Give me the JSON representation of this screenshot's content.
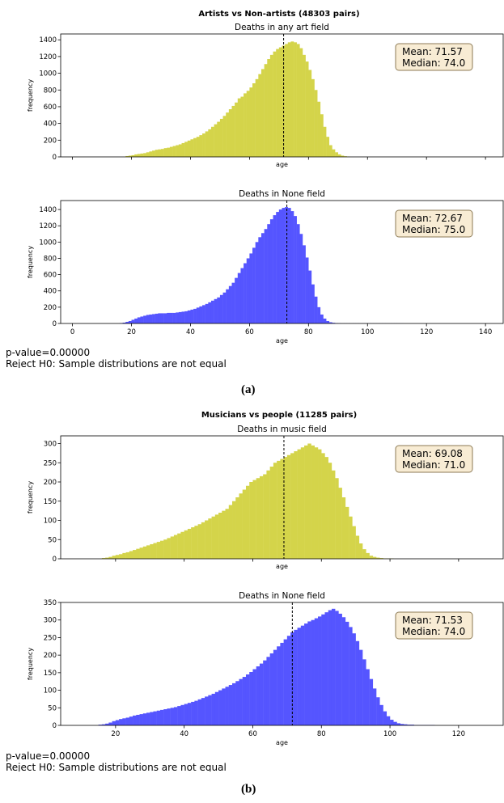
{
  "figures": [
    {
      "label": "(a)",
      "suptitle": "Artists vs Non-artists (48303 pairs)",
      "pvalue_text": "p-value=0.00000",
      "reject_text": "Reject H0: Sample distributions are not equal"
    },
    {
      "label": "(b)",
      "suptitle": "Musicians vs people (11285 pairs)",
      "pvalue_text": "p-value=0.00000",
      "reject_text": "Reject H0: Sample distributions are not equal"
    }
  ],
  "colors": {
    "yellow_bars": "#d4d44a",
    "blue_bars": "#5555ff",
    "stats_box_fill": "#f8ecd4",
    "stats_box_edge": "#8c7a55"
  },
  "chart_data": [
    {
      "type": "bar",
      "subplot_title": "Deaths in any art field",
      "xlabel": "age",
      "ylabel": "frequency",
      "color": "#d4d44a",
      "xlim": [
        -4,
        146
      ],
      "ylim": [
        0,
        1470
      ],
      "x_ticks": [
        0,
        20,
        40,
        60,
        80,
        100,
        120,
        140
      ],
      "x_ticklabels": [],
      "y_ticks": [
        0,
        200,
        400,
        600,
        800,
        1000,
        1200,
        1400
      ],
      "bin_start": 18,
      "bin_width": 1,
      "grid": false,
      "values": [
        10,
        15,
        20,
        30,
        35,
        40,
        45,
        55,
        65,
        75,
        85,
        90,
        95,
        105,
        110,
        120,
        130,
        140,
        150,
        165,
        180,
        195,
        210,
        225,
        240,
        260,
        280,
        305,
        330,
        360,
        390,
        420,
        455,
        490,
        530,
        570,
        610,
        650,
        700,
        720,
        760,
        790,
        830,
        880,
        930,
        990,
        1050,
        1110,
        1170,
        1220,
        1260,
        1290,
        1310,
        1330,
        1350,
        1370,
        1380,
        1370,
        1350,
        1300,
        1220,
        1140,
        1040,
        930,
        800,
        660,
        510,
        360,
        240,
        140,
        90,
        55,
        30,
        15,
        8,
        4
      ],
      "mean_line": 71.57,
      "stats_box": {
        "mean": "Mean: 71.57",
        "median": "Median: 74.0",
        "position": "top-right"
      }
    },
    {
      "type": "bar",
      "subplot_title": "Deaths in None field",
      "xlabel": "age",
      "ylabel": "frequency",
      "color": "#5555ff",
      "xlim": [
        -4,
        146
      ],
      "ylim": [
        0,
        1510
      ],
      "x_ticks": [
        0,
        20,
        40,
        60,
        80,
        100,
        120,
        140
      ],
      "x_ticklabels": [
        "0",
        "20",
        "40",
        "60",
        "80",
        "100",
        "120",
        "140"
      ],
      "y_ticks": [
        0,
        200,
        400,
        600,
        800,
        1000,
        1200,
        1400
      ],
      "bin_start": 16,
      "bin_width": 1,
      "grid": false,
      "values": [
        5,
        10,
        20,
        30,
        45,
        60,
        75,
        85,
        95,
        105,
        110,
        115,
        120,
        125,
        125,
        125,
        130,
        130,
        130,
        135,
        140,
        145,
        150,
        160,
        170,
        180,
        195,
        210,
        225,
        240,
        260,
        280,
        300,
        320,
        350,
        380,
        420,
        460,
        500,
        560,
        620,
        680,
        740,
        800,
        860,
        930,
        1000,
        1060,
        1110,
        1160,
        1220,
        1280,
        1330,
        1370,
        1400,
        1420,
        1430,
        1420,
        1380,
        1320,
        1220,
        1100,
        960,
        810,
        650,
        480,
        330,
        200,
        110,
        60,
        30,
        15,
        8,
        4,
        2,
        1,
        1,
        1,
        1,
        1,
        1,
        1,
        1,
        1,
        1,
        1,
        1,
        1,
        1,
        1,
        1,
        1,
        1,
        1,
        1,
        1
      ],
      "mean_line": 72.67,
      "stats_box": {
        "mean": "Mean: 72.67",
        "median": "Median: 75.0",
        "position": "top-right"
      }
    },
    {
      "type": "bar",
      "subplot_title": "Deaths in music field",
      "xlabel": "age",
      "ylabel": "frequency",
      "color": "#d4d44a",
      "xlim": [
        4,
        133
      ],
      "ylim": [
        0,
        320
      ],
      "x_ticks": [
        20,
        40,
        60,
        80,
        100,
        120
      ],
      "x_ticklabels": [],
      "y_ticks": [
        0,
        50,
        100,
        150,
        200,
        250,
        300
      ],
      "bin_start": 16,
      "bin_width": 1,
      "grid": false,
      "values": [
        2,
        3,
        5,
        8,
        10,
        12,
        15,
        17,
        20,
        23,
        26,
        29,
        32,
        35,
        38,
        41,
        44,
        47,
        50,
        54,
        58,
        62,
        66,
        70,
        74,
        78,
        82,
        86,
        90,
        95,
        100,
        105,
        110,
        115,
        120,
        125,
        130,
        140,
        150,
        160,
        170,
        180,
        190,
        200,
        205,
        210,
        215,
        220,
        230,
        240,
        250,
        255,
        260,
        265,
        270,
        275,
        280,
        285,
        290,
        295,
        300,
        295,
        290,
        285,
        275,
        265,
        250,
        230,
        210,
        185,
        160,
        135,
        110,
        85,
        60,
        40,
        25,
        15,
        8,
        5,
        3,
        2,
        1,
        1,
        1
      ],
      "mean_line": 69.08,
      "stats_box": {
        "mean": "Mean: 69.08",
        "median": "Median: 71.0",
        "position": "top-right"
      }
    },
    {
      "type": "bar",
      "subplot_title": "Deaths in None field",
      "xlabel": "age",
      "ylabel": "frequency",
      "color": "#5555ff",
      "xlim": [
        4,
        133
      ],
      "ylim": [
        0,
        350
      ],
      "x_ticks": [
        20,
        40,
        60,
        80,
        100,
        120
      ],
      "x_ticklabels": [
        "20",
        "40",
        "60",
        "80",
        "100",
        "120"
      ],
      "y_ticks": [
        0,
        50,
        100,
        150,
        200,
        250,
        300,
        350
      ],
      "bin_start": 15,
      "bin_width": 1,
      "grid": false,
      "values": [
        2,
        3,
        5,
        8,
        12,
        15,
        18,
        20,
        22,
        25,
        28,
        30,
        32,
        34,
        36,
        38,
        40,
        42,
        44,
        46,
        48,
        50,
        52,
        55,
        58,
        61,
        64,
        67,
        70,
        74,
        78,
        82,
        86,
        90,
        95,
        100,
        105,
        110,
        115,
        120,
        126,
        132,
        138,
        145,
        152,
        160,
        168,
        176,
        185,
        195,
        205,
        215,
        225,
        235,
        245,
        255,
        265,
        272,
        278,
        284,
        290,
        296,
        300,
        305,
        310,
        316,
        322,
        328,
        332,
        326,
        318,
        308,
        295,
        280,
        262,
        240,
        215,
        188,
        160,
        132,
        105,
        80,
        58,
        40,
        26,
        16,
        10,
        6,
        4,
        3,
        2,
        2,
        1,
        1,
        1,
        1,
        1,
        1
      ],
      "mean_line": 71.53,
      "stats_box": {
        "mean": "Mean: 71.53",
        "median": "Median: 74.0",
        "position": "top-right"
      }
    }
  ]
}
